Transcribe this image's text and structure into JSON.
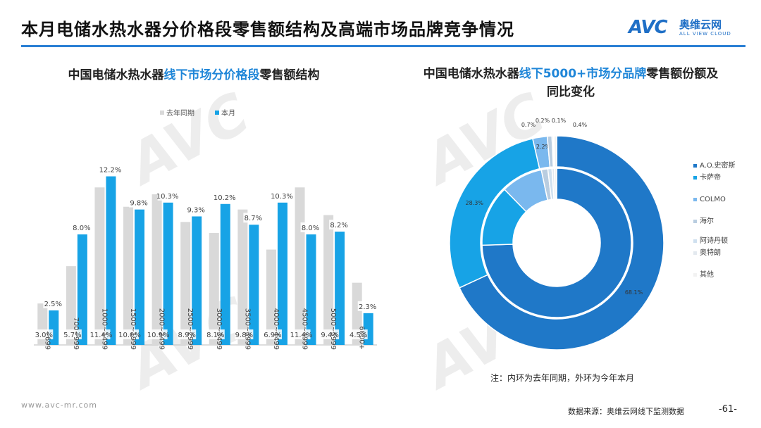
{
  "header": {
    "title": "本月电储水热水器分价格段零售额结构及高端市场品牌竞争情况",
    "logo_mark": "AVC",
    "logo_cn": "奥维云网",
    "logo_en": "ALL VIEW CLOUD"
  },
  "left_chart": {
    "title_part1": "中国电储水热水器",
    "title_highlight": "线下市场分价格段",
    "title_part2": "零售额结构"
  },
  "right_chart": {
    "title_part1": "中国电储水热水器",
    "title_highlight": "线下5000+市场分品牌",
    "title_part2": "零售额份额及同比变化"
  },
  "note": "注：内环为去年同期，外环为今年本月",
  "source": "数据来源：奥维云网线下监测数据",
  "page_number": "-61-",
  "website": "www.avc-mr.com",
  "colors": {
    "last_year": "#d9d9d9",
    "this_month": "#17a3e6",
    "accent": "#1f86d8"
  },
  "chart_data": [
    {
      "type": "bar",
      "categories": [
        "~699",
        "700~999",
        "1000~1499",
        "1500~1999",
        "2000~2499",
        "2500~2999",
        "3000~3499",
        "3500~3999",
        "4000~4499",
        "4500~4999",
        "5000~5999",
        "6000+"
      ],
      "series": [
        {
          "name": "去年同期",
          "values": [
            3.0,
            5.7,
            11.4,
            10.0,
            10.9,
            8.9,
            8.1,
            9.8,
            6.9,
            11.4,
            9.4,
            4.5
          ],
          "color": "#d9d9d9"
        },
        {
          "name": "本月",
          "values": [
            2.5,
            8.0,
            12.2,
            9.8,
            10.3,
            9.3,
            10.2,
            8.7,
            10.3,
            8.0,
            8.2,
            2.3
          ],
          "color": "#17a3e6"
        }
      ],
      "value_suffix": "%",
      "ylim": [
        0,
        13.5
      ],
      "legend_position": "top"
    },
    {
      "type": "pie",
      "style": "donut",
      "categories": [
        "A.O.史密斯",
        "卡萨帝",
        "COLMO",
        "海尔",
        "阿诗丹顿",
        "奥特朗",
        "其他"
      ],
      "colors": [
        "#1f78c8",
        "#17a3e6",
        "#7ab8ee",
        "#b9cde0",
        "#cfe0ef",
        "#e3e9ef",
        "#f2f2f2"
      ],
      "series": [
        {
          "name": "内环",
          "values": [
            74.5,
            13.2,
            9.0,
            1.4,
            0.9,
            0.5,
            0.5
          ],
          "labels_shown": false
        },
        {
          "name": "外环",
          "values": [
            68.1,
            28.3,
            2.2,
            0.7,
            0.2,
            0.1,
            0.4
          ],
          "labels_shown": true
        }
      ],
      "value_suffix": "%",
      "legend_position": "right"
    }
  ]
}
